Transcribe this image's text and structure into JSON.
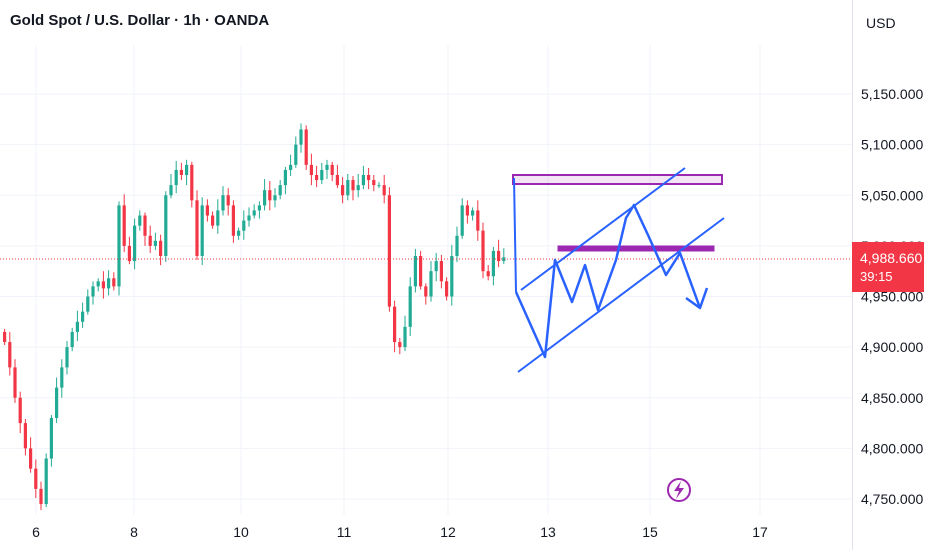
{
  "header": {
    "title": "Gold Spot / U.S. Dollar · 1h · OANDA",
    "currency": "USD"
  },
  "price_tag": {
    "value": "4,988.660",
    "countdown": "39:15"
  },
  "colors": {
    "up": "#22ab94",
    "down": "#f23645",
    "pattern": "#2962ff",
    "zone": "#9c27b0",
    "grid": "#f0f3fa"
  },
  "icons": [
    "lightning-icon"
  ],
  "chart_data": {
    "type": "candlestick",
    "title": "Gold Spot / U.S. Dollar · 1h · OANDA",
    "ylim": [
      4737,
      5195
    ],
    "y_ticks": [
      5150,
      5100,
      5050,
      5000,
      4950,
      4900,
      4850,
      4800,
      4750
    ],
    "y_tick_labels": [
      "5,150.000",
      "5,100.000",
      "5,050.000",
      "5,000.000",
      "4,950.000",
      "4,900.000",
      "4,850.000",
      "4,800.000",
      "4,750.000"
    ],
    "x_ticks": [
      6,
      8,
      10,
      11,
      12,
      13,
      15,
      17
    ],
    "x_tick_labels": [
      "6",
      "8",
      "10",
      "11",
      "12",
      "13",
      "15",
      "17"
    ],
    "last_price": 4988.66,
    "closes": [
      4905,
      4880,
      4850,
      4825,
      4800,
      4780,
      4760,
      4745,
      4790,
      4830,
      4860,
      4880,
      4900,
      4915,
      4925,
      4935,
      4950,
      4960,
      4965,
      4958,
      4968,
      4960,
      5040,
      5000,
      4985,
      5020,
      5030,
      5010,
      5000,
      5005,
      4990,
      5050,
      5060,
      5075,
      5070,
      5080,
      5045,
      4990,
      5040,
      5030,
      5020,
      5035,
      5050,
      5040,
      5010,
      5015,
      5025,
      5030,
      5035,
      5040,
      5055,
      5045,
      5050,
      5060,
      5075,
      5080,
      5100,
      5115,
      5080,
      5070,
      5065,
      5075,
      5080,
      5070,
      5060,
      5050,
      5065,
      5055,
      5060,
      5070,
      5065,
      5060,
      5060,
      5050,
      4940,
      4905,
      4900,
      4920,
      4960,
      4990,
      4960,
      4950,
      4975,
      4985,
      4965,
      4950,
      4990,
      5010,
      5040,
      5030,
      5035,
      5015,
      4975,
      4970,
      4995,
      4985,
      4988.66
    ]
  },
  "annotations": {
    "description": "ascending channel with resistance zones and projected drop",
    "labels": []
  }
}
